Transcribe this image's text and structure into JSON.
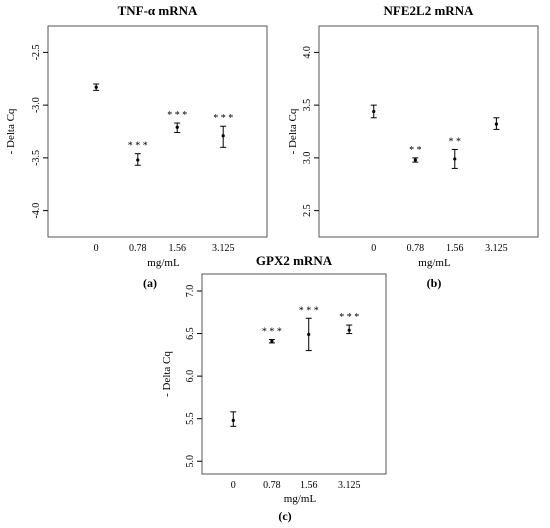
{
  "chart_data": [
    {
      "panel_label": "(a)",
      "title": "TNF-α mRNA",
      "type": "scatter",
      "xlabel": "mg/mL",
      "ylabel": "- Delta Cq",
      "categories": [
        "0",
        "0.78",
        "1.56",
        "3.125"
      ],
      "y_tick_labels": [
        "-2.5",
        "-3.0",
        "-3.5",
        "-4.0"
      ],
      "y_ticks": [
        2.5,
        3.0,
        3.5,
        4.0
      ],
      "ylim": [
        2.25,
        4.25
      ],
      "reversed_axis": true,
      "points": [
        {
          "x": "0",
          "mean": 2.83,
          "err_low": 2.8,
          "err_high": 2.86,
          "sig": ""
        },
        {
          "x": "0.78",
          "mean": 3.52,
          "err_low": 3.46,
          "err_high": 3.57,
          "sig": "* * *"
        },
        {
          "x": "1.56",
          "mean": 3.21,
          "err_low": 3.17,
          "err_high": 3.26,
          "sig": "* * *"
        },
        {
          "x": "3.125",
          "mean": 3.29,
          "err_low": 3.2,
          "err_high": 3.4,
          "sig": "* * *"
        }
      ]
    },
    {
      "panel_label": "(b)",
      "title": "NFE2L2 mRNA",
      "type": "scatter",
      "xlabel": "mg/mL",
      "ylabel": "- Delta Cq",
      "categories": [
        "0",
        "0.78",
        "1.56",
        "3.125"
      ],
      "y_tick_labels": [
        "4.0",
        "3.5",
        "3.0",
        "2.5"
      ],
      "y_ticks": [
        4.0,
        3.5,
        3.0,
        2.5
      ],
      "ylim": [
        2.25,
        4.25
      ],
      "reversed_axis": false,
      "points": [
        {
          "x": "0",
          "mean": 3.44,
          "err_low": 3.38,
          "err_high": 3.5,
          "sig": ""
        },
        {
          "x": "0.78",
          "mean": 2.98,
          "err_low": 2.96,
          "err_high": 3.0,
          "sig": "* *"
        },
        {
          "x": "1.56",
          "mean": 2.99,
          "err_low": 2.9,
          "err_high": 3.08,
          "sig": "* *"
        },
        {
          "x": "3.125",
          "mean": 3.32,
          "err_low": 3.27,
          "err_high": 3.38,
          "sig": ""
        }
      ]
    },
    {
      "panel_label": "(c)",
      "title": "GPX2 mRNA",
      "type": "scatter",
      "xlabel": "mg/mL",
      "ylabel": "- Delta Cq",
      "categories": [
        "0",
        "0.78",
        "1.56",
        "3.125"
      ],
      "y_tick_labels": [
        "7.0",
        "6.5",
        "6.0",
        "5.5",
        "5.0"
      ],
      "y_ticks": [
        7.0,
        6.5,
        6.0,
        5.5,
        5.0
      ],
      "ylim": [
        4.85,
        7.2
      ],
      "reversed_axis": false,
      "points": [
        {
          "x": "0",
          "mean": 5.48,
          "err_low": 5.41,
          "err_high": 5.58,
          "sig": ""
        },
        {
          "x": "0.78",
          "mean": 6.41,
          "err_low": 6.39,
          "err_high": 6.43,
          "sig": "* * *"
        },
        {
          "x": "1.56",
          "mean": 6.49,
          "err_low": 6.3,
          "err_high": 6.68,
          "sig": "* * *"
        },
        {
          "x": "3.125",
          "mean": 6.54,
          "err_low": 6.5,
          "err_high": 6.6,
          "sig": "* * *"
        }
      ]
    }
  ]
}
